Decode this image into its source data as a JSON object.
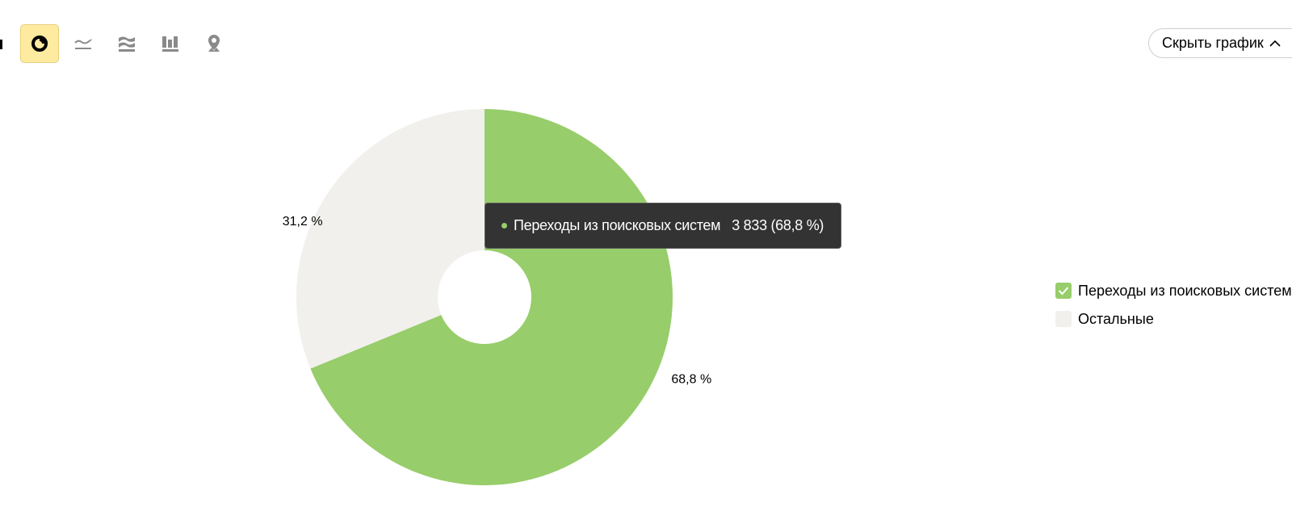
{
  "toolbar": {
    "buttons": [
      {
        "name": "pie-chart",
        "icon": "pie-chart-icon",
        "active": true
      },
      {
        "name": "line-chart",
        "icon": "line-chart-icon",
        "active": false
      },
      {
        "name": "area-chart",
        "icon": "stacked-area-chart-icon",
        "active": false
      },
      {
        "name": "bar-chart",
        "icon": "bar-chart-icon",
        "active": false
      },
      {
        "name": "map",
        "icon": "map-pin-icon",
        "active": false
      }
    ]
  },
  "hide_chart_button": {
    "label": "Скрыть график",
    "icon": "chevron-up-icon"
  },
  "chart_data": {
    "type": "pie",
    "series": [
      {
        "name": "Переходы из поисковых систем",
        "value": 3833,
        "percent": 68.8,
        "percent_label": "68,8 %",
        "color": "#97cd6a"
      },
      {
        "name": "Остальные",
        "value": null,
        "percent": 31.2,
        "percent_label": "31,2 %",
        "color": "#f1f0ed"
      }
    ],
    "legend_position": "right"
  },
  "tooltip": {
    "series": "Переходы из поисковых систем",
    "value": "3 833 (68,8 %)",
    "dot_color": "#97cd6a"
  },
  "legend": {
    "items": [
      {
        "label": "Переходы из поисковых систем",
        "checked": true,
        "color": "#97cd6a"
      },
      {
        "label": "Остальные",
        "checked": false,
        "color": "#f1f0ed"
      }
    ]
  },
  "colors": {
    "accent": "#ffeba0",
    "icon_gray": "#8a8a8a"
  }
}
